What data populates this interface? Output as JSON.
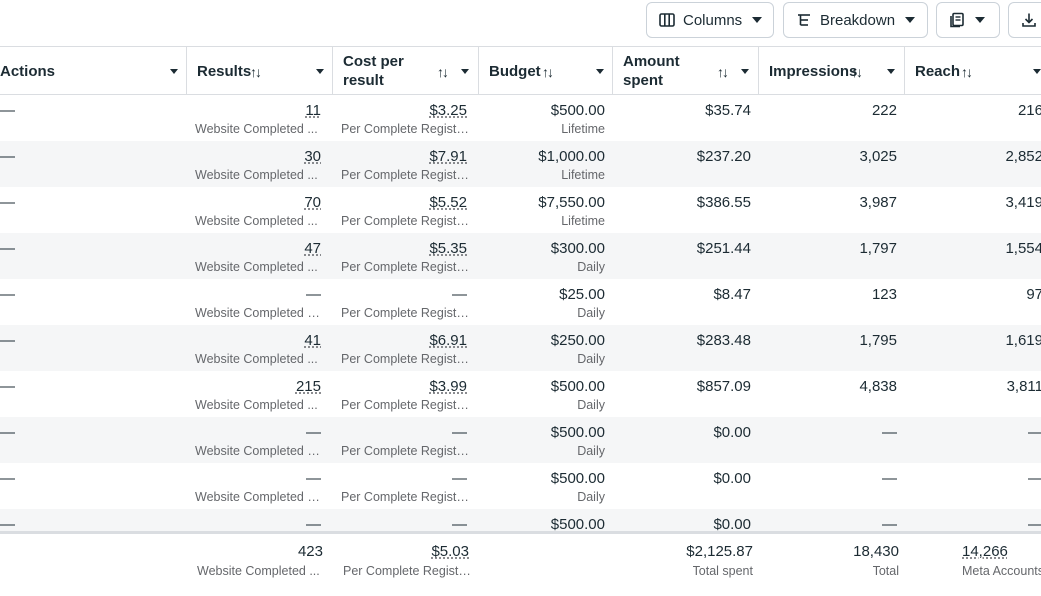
{
  "toolbar": {
    "columns_label": "Columns",
    "breakdown_label": "Breakdown"
  },
  "headers": {
    "actions": "Actions",
    "results": "Results",
    "cost_line1": "Cost per",
    "cost_line2": "result",
    "budget": "Budget",
    "amount_line1": "Amount",
    "amount_line2": "spent",
    "impressions": "Impressions",
    "reach": "Reach"
  },
  "rows": [
    {
      "actions": "—",
      "results": "11",
      "results_sub": "Website Completed ...",
      "cost": "$3.25",
      "cost_sub": "Per Complete Registr...",
      "budget": "$500.00",
      "budget_sub": "Lifetime",
      "amount": "$35.74",
      "impressions": "222",
      "reach": "216"
    },
    {
      "actions": "—",
      "results": "30",
      "results_sub": "Website Completed ...",
      "cost": "$7.91",
      "cost_sub": "Per Complete Registr...",
      "budget": "$1,000.00",
      "budget_sub": "Lifetime",
      "amount": "$237.20",
      "impressions": "3,025",
      "reach": "2,852"
    },
    {
      "actions": "—",
      "results": "70",
      "results_sub": "Website Completed ...",
      "cost": "$5.52",
      "cost_sub": "Per Complete Registr...",
      "budget": "$7,550.00",
      "budget_sub": "Lifetime",
      "amount": "$386.55",
      "impressions": "3,987",
      "reach": "3,419"
    },
    {
      "actions": "—",
      "results": "47",
      "results_sub": "Website Completed ...",
      "cost": "$5.35",
      "cost_sub": "Per Complete Registr...",
      "budget": "$300.00",
      "budget_sub": "Daily",
      "amount": "$251.44",
      "impressions": "1,797",
      "reach": "1,554"
    },
    {
      "actions": "—",
      "results": "—",
      "results_sub": "Website Completed R...",
      "cost": "—",
      "cost_sub": "Per Complete Registr...",
      "budget": "$25.00",
      "budget_sub": "Daily",
      "amount": "$8.47",
      "impressions": "123",
      "reach": "97"
    },
    {
      "actions": "—",
      "results": "41",
      "results_sub": "Website Completed ...",
      "cost": "$6.91",
      "cost_sub": "Per Complete Registr...",
      "budget": "$250.00",
      "budget_sub": "Daily",
      "amount": "$283.48",
      "impressions": "1,795",
      "reach": "1,619"
    },
    {
      "actions": "—",
      "results": "215",
      "results_sub": "Website Completed ...",
      "cost": "$3.99",
      "cost_sub": "Per Complete Registr...",
      "budget": "$500.00",
      "budget_sub": "Daily",
      "amount": "$857.09",
      "impressions": "4,838",
      "reach": "3,811"
    },
    {
      "actions": "—",
      "results": "—",
      "results_sub": "Website Completed R...",
      "cost": "—",
      "cost_sub": "Per Complete Registr...",
      "budget": "$500.00",
      "budget_sub": "Daily",
      "amount": "$0.00",
      "impressions": "—",
      "reach": "—"
    },
    {
      "actions": "—",
      "results": "—",
      "results_sub": "Website Completed R...",
      "cost": "—",
      "cost_sub": "Per Complete Registr...",
      "budget": "$500.00",
      "budget_sub": "Daily",
      "amount": "$0.00",
      "impressions": "—",
      "reach": "—"
    },
    {
      "actions": "—",
      "results": "—",
      "results_sub": "",
      "cost": "—",
      "cost_sub": "",
      "budget": "$500.00",
      "budget_sub": "",
      "amount": "$0.00",
      "impressions": "—",
      "reach": "—"
    }
  ],
  "totals": {
    "results": "423",
    "results_sub": "Website Completed ...",
    "cost": "$5.03",
    "cost_sub": "Per Complete Registr...",
    "amount": "$2,125.87",
    "amount_sub": "Total spent",
    "impressions": "18,430",
    "impressions_sub": "Total",
    "reach": "14,266",
    "reach_sub": "Meta Accounts"
  }
}
